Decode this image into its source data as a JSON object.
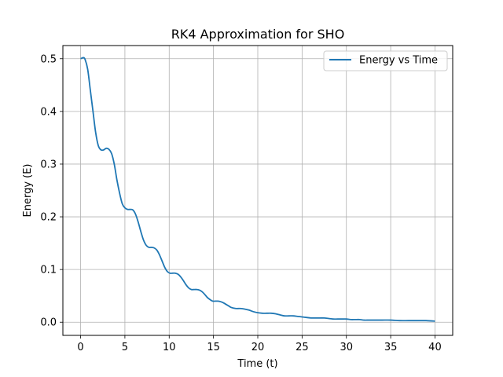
{
  "chart_data": {
    "type": "line",
    "title": "RK4 Approximation for SHO",
    "xlabel": "Time (t)",
    "ylabel": "Energy (E)",
    "xlim": [
      -2,
      42
    ],
    "ylim": [
      -0.025,
      0.525
    ],
    "xticks": [
      0,
      5,
      10,
      15,
      20,
      25,
      30,
      35,
      40
    ],
    "yticks": [
      0.0,
      0.1,
      0.2,
      0.3,
      0.4,
      0.5
    ],
    "xtick_labels": [
      "0",
      "5",
      "10",
      "15",
      "20",
      "25",
      "30",
      "35",
      "40"
    ],
    "ytick_labels": [
      "0.0",
      "0.1",
      "0.2",
      "0.3",
      "0.4",
      "0.5"
    ],
    "grid": true,
    "legend_position": "top-right",
    "series_color": "#1f77b4",
    "series": [
      {
        "name": "Energy vs Time",
        "x": [
          0.0,
          0.3,
          0.5,
          0.8,
          1.1,
          1.4,
          1.7,
          2.0,
          2.3,
          2.6,
          2.9,
          3.2,
          3.5,
          3.8,
          4.1,
          4.4,
          4.7,
          5.0,
          5.3,
          5.6,
          5.9,
          6.2,
          6.5,
          6.8,
          7.1,
          7.4,
          7.7,
          8.0,
          8.3,
          8.6,
          8.9,
          9.2,
          9.5,
          9.8,
          10.1,
          10.4,
          10.7,
          11.0,
          11.3,
          11.6,
          11.9,
          12.2,
          12.5,
          12.8,
          13.1,
          13.4,
          13.7,
          14.0,
          14.3,
          14.6,
          14.9,
          15.2,
          15.5,
          15.8,
          16.1,
          16.4,
          16.7,
          17.0,
          17.5,
          18.0,
          18.5,
          19.0,
          19.5,
          20.0,
          20.5,
          21.0,
          21.5,
          22.0,
          22.5,
          23.0,
          23.5,
          24.0,
          24.5,
          25.0,
          25.5,
          26.0,
          26.5,
          27.0,
          27.5,
          28.0,
          28.5,
          29.0,
          29.5,
          30.0,
          30.5,
          31.0,
          31.5,
          32.0,
          32.5,
          33.0,
          34.0,
          35.0,
          36.0,
          37.0,
          38.0,
          39.0,
          40.0
        ],
        "y": [
          0.5,
          0.502,
          0.499,
          0.48,
          0.44,
          0.4,
          0.36,
          0.335,
          0.327,
          0.327,
          0.33,
          0.328,
          0.32,
          0.3,
          0.27,
          0.245,
          0.225,
          0.217,
          0.214,
          0.214,
          0.213,
          0.205,
          0.19,
          0.172,
          0.156,
          0.146,
          0.142,
          0.142,
          0.141,
          0.137,
          0.128,
          0.116,
          0.104,
          0.096,
          0.093,
          0.093,
          0.093,
          0.091,
          0.086,
          0.079,
          0.071,
          0.065,
          0.062,
          0.062,
          0.062,
          0.061,
          0.058,
          0.053,
          0.047,
          0.043,
          0.04,
          0.04,
          0.04,
          0.039,
          0.037,
          0.034,
          0.031,
          0.028,
          0.026,
          0.026,
          0.025,
          0.023,
          0.02,
          0.018,
          0.017,
          0.017,
          0.017,
          0.016,
          0.014,
          0.012,
          0.012,
          0.012,
          0.011,
          0.01,
          0.009,
          0.008,
          0.008,
          0.008,
          0.008,
          0.007,
          0.006,
          0.006,
          0.006,
          0.006,
          0.005,
          0.005,
          0.005,
          0.004,
          0.004,
          0.004,
          0.004,
          0.004,
          0.003,
          0.003,
          0.003,
          0.003,
          0.002
        ]
      }
    ]
  }
}
